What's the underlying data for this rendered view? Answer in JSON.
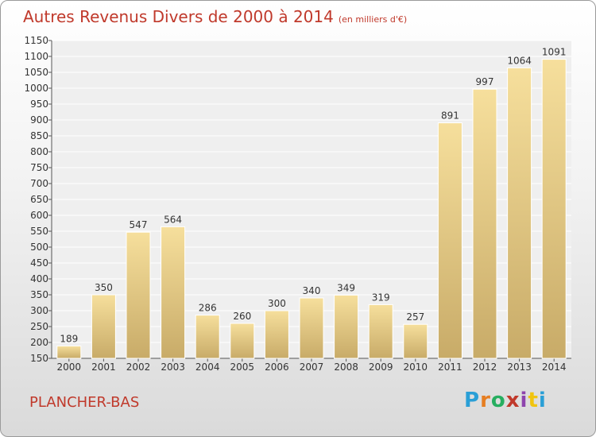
{
  "chart_title": "Autres Revenus Divers de 2000 à 2014",
  "chart_unit": "(en milliers d'€)",
  "commune": "PLANCHER-BAS",
  "logo": {
    "text": "Proxiti",
    "colors": [
      "#2a9fd6",
      "#e67e22",
      "#27ae60",
      "#c0392b",
      "#8e44ad",
      "#f1c40f",
      "#2a9fd6"
    ]
  },
  "colors": {
    "title": "#c0392b",
    "bar_light": "#f6df9c",
    "bar_dark": "#c8ab68"
  },
  "chart_data": {
    "type": "bar",
    "title": "Autres Revenus Divers de 2000 à 2014",
    "subtitle": "(en milliers d'€)",
    "categories": [
      "2000",
      "2001",
      "2002",
      "2003",
      "2004",
      "2005",
      "2006",
      "2007",
      "2008",
      "2009",
      "2010",
      "2011",
      "2012",
      "2013",
      "2014"
    ],
    "values": [
      189,
      350,
      547,
      564,
      286,
      260,
      300,
      340,
      349,
      319,
      257,
      891,
      997,
      1064,
      1091
    ],
    "ylim": [
      150,
      1150
    ],
    "yticks": [
      150,
      200,
      250,
      300,
      350,
      400,
      450,
      500,
      550,
      600,
      650,
      700,
      750,
      800,
      850,
      900,
      950,
      1000,
      1050,
      1100,
      1150
    ],
    "grid": true,
    "xlabel": "",
    "ylabel": ""
  }
}
